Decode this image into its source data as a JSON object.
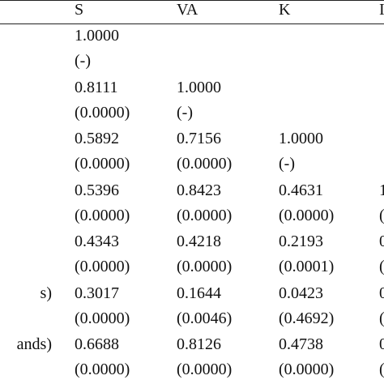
{
  "table": {
    "header": [
      "S",
      "VA",
      "K",
      "I"
    ],
    "rows": [
      {
        "label": null,
        "coef": [
          "1.0000"
        ],
        "p": [
          "(-)"
        ]
      },
      {
        "label": null,
        "coef": [
          "0.8111",
          "1.0000"
        ],
        "p": [
          "(0.0000)",
          "(-)"
        ]
      },
      {
        "label": null,
        "coef": [
          "0.5892",
          "0.7156",
          "1.0000"
        ],
        "p": [
          "(0.0000)",
          "(0.0000)",
          "(-)"
        ]
      },
      {
        "label": null,
        "coef": [
          "0.5396",
          "0.8423",
          "0.4631",
          "1"
        ],
        "p": [
          "(0.0000)",
          "(0.0000)",
          "(0.0000)",
          "("
        ]
      },
      {
        "label": null,
        "coef": [
          "0.4343",
          "0.4218",
          "0.2193",
          "0"
        ],
        "p": [
          "(0.0000)",
          "(0.0000)",
          "(0.0001)",
          "("
        ]
      },
      {
        "label": "s)",
        "coef": [
          "0.3017",
          "0.1644",
          "0.0423",
          "0"
        ],
        "p": [
          "(0.0000)",
          "(0.0046)",
          "(0.4692)",
          "("
        ]
      },
      {
        "label": "ands)",
        "coef": [
          "0.6688",
          "0.8126",
          "0.4738",
          "0"
        ],
        "p": [
          "(0.0000)",
          "(0.0000)",
          "(0.0000)",
          "("
        ]
      }
    ]
  }
}
